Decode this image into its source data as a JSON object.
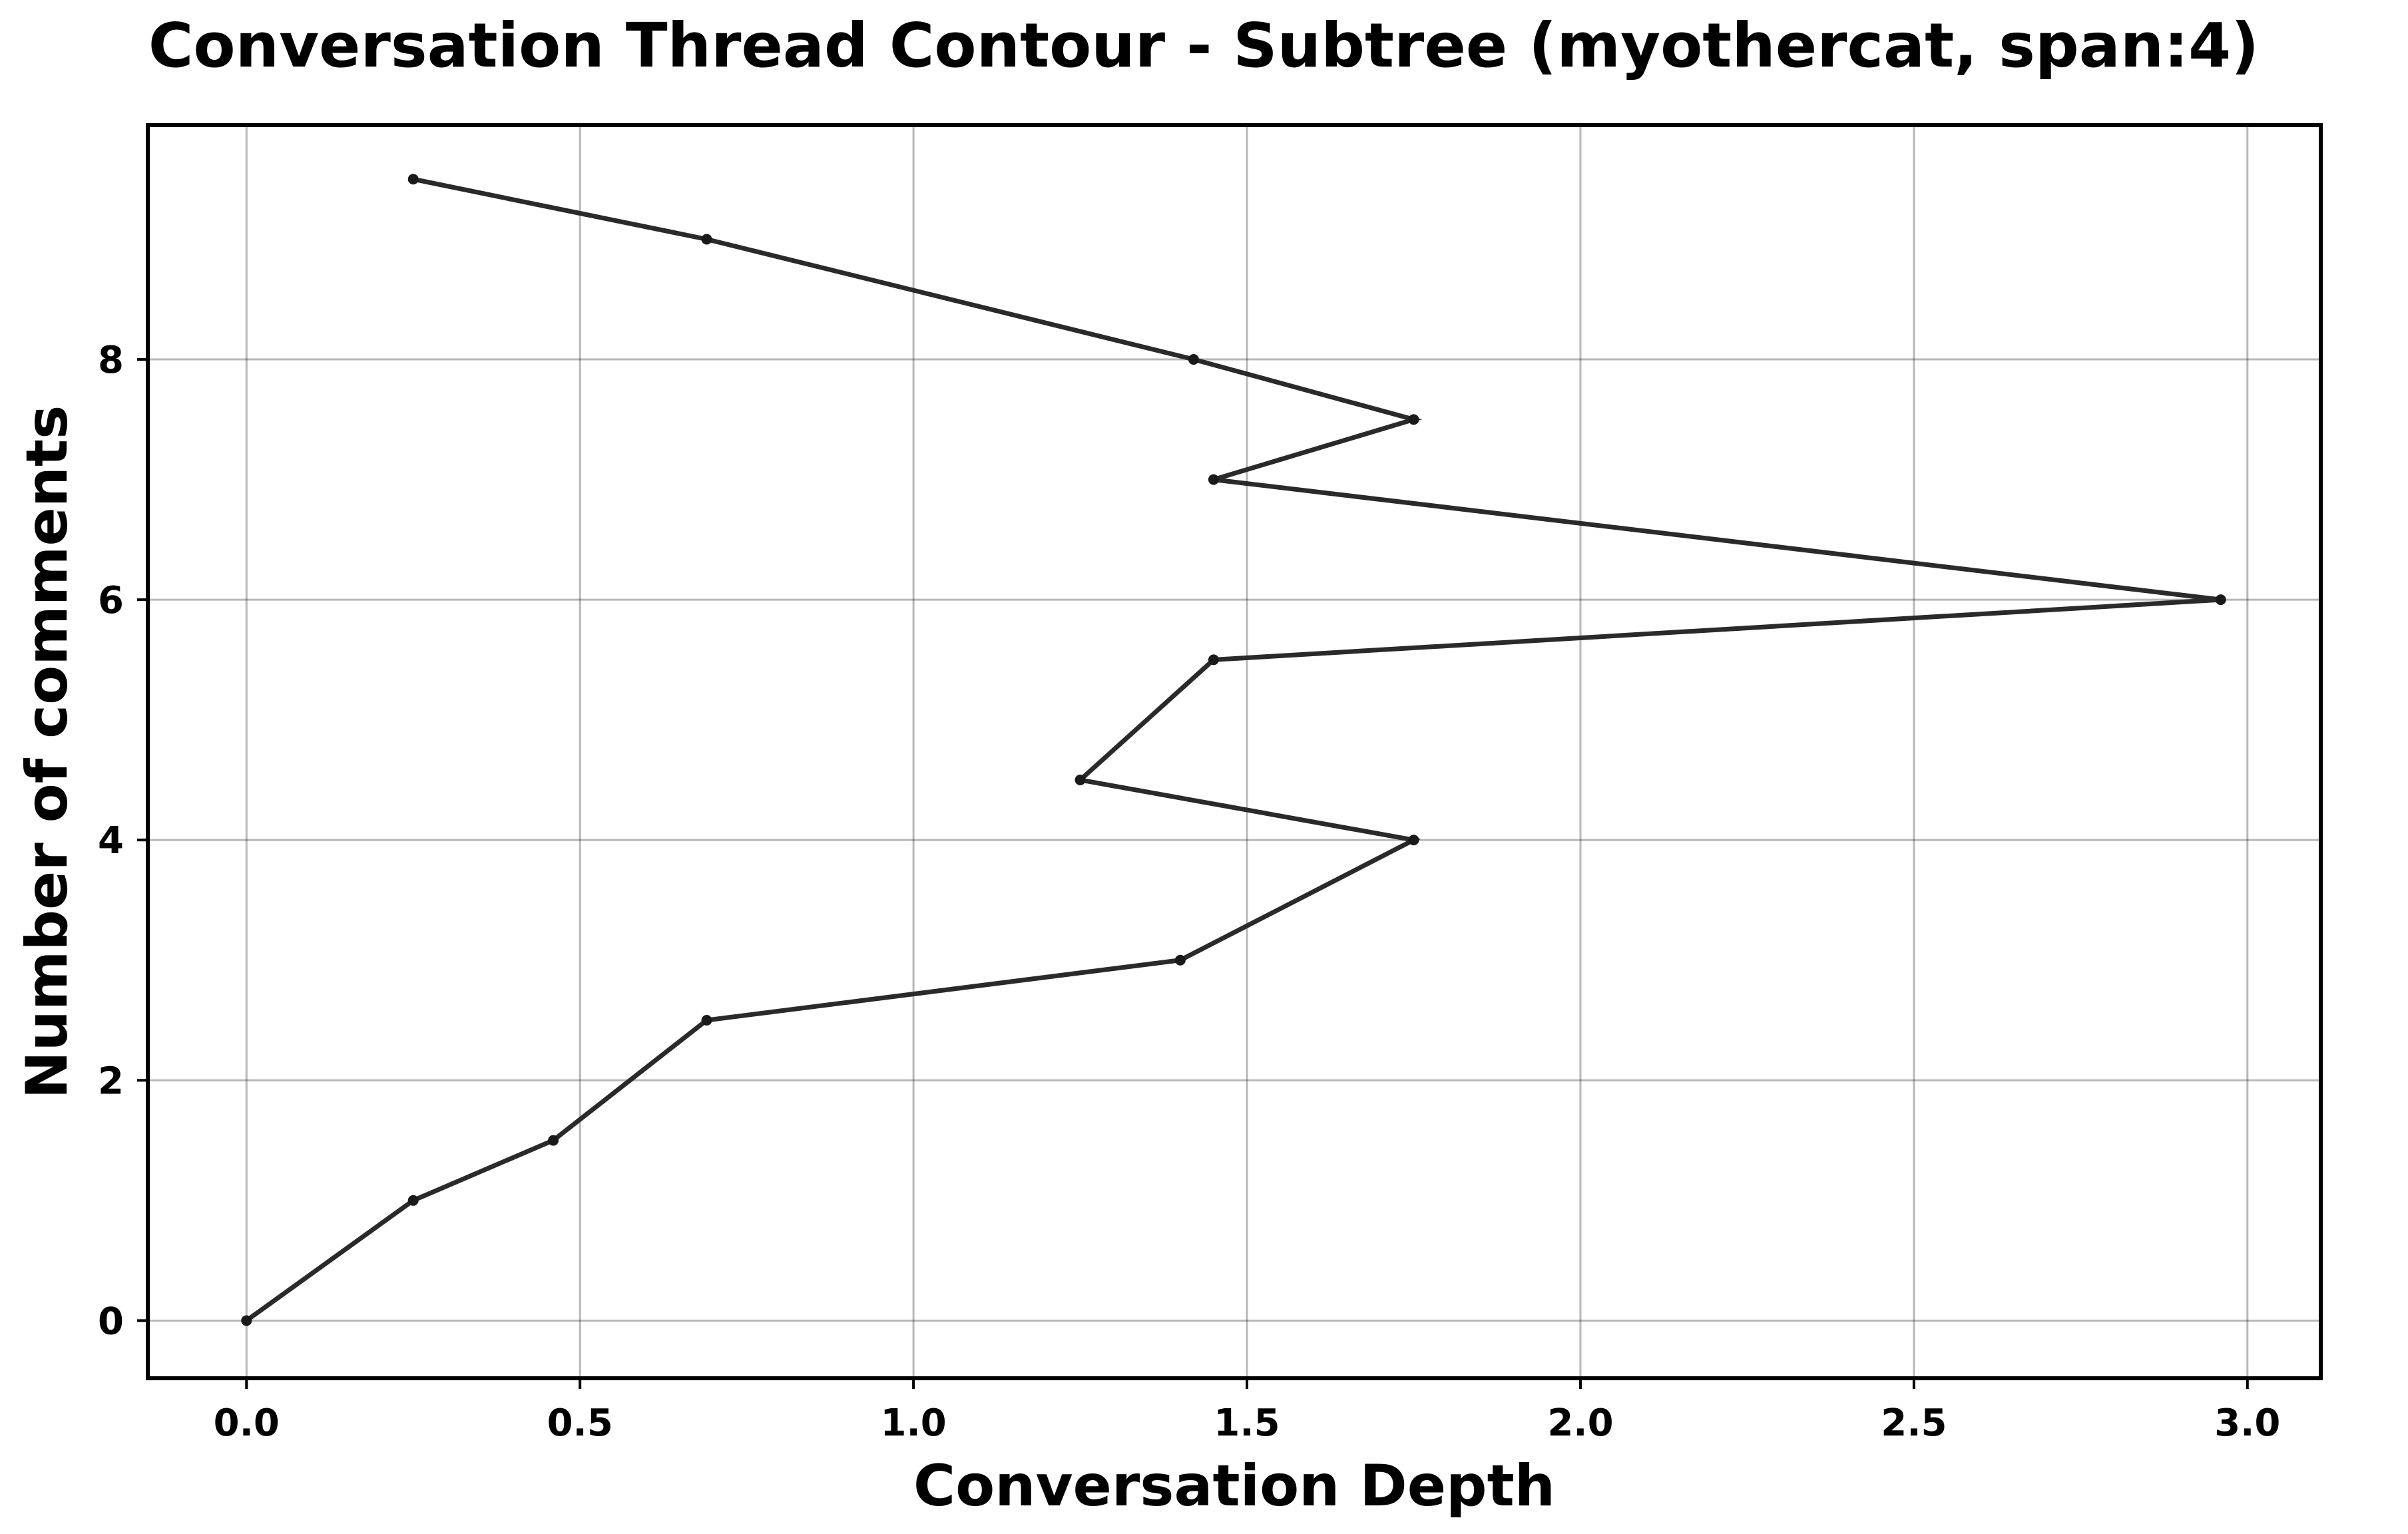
{
  "chart_data": {
    "type": "line",
    "title": "Conversation Thread Contour  - Subtree (myothercat, span:4)",
    "xlabel": "Conversation Depth",
    "ylabel": "Number of comments",
    "xlim": [
      -0.148,
      3.11
    ],
    "ylim": [
      -0.48,
      9.95
    ],
    "xticks": [
      0.0,
      0.5,
      1.0,
      1.5,
      2.0,
      2.5,
      3.0
    ],
    "xtick_labels": [
      "0.0",
      "0.5",
      "1.0",
      "1.5",
      "2.0",
      "2.5",
      "3.0"
    ],
    "yticks": [
      0,
      2,
      4,
      6,
      8
    ],
    "ytick_labels": [
      "0",
      "2",
      "4",
      "6",
      "8"
    ],
    "grid": true,
    "line_color": "#2a2a2a",
    "series": [
      {
        "x": [
          0.0,
          0.25,
          0.46,
          0.69,
          1.4,
          1.75,
          1.25,
          1.45,
          2.96,
          1.45,
          1.75,
          1.42,
          0.69,
          0.25
        ],
        "y": [
          0.0,
          1.0,
          1.5,
          2.5,
          3.0,
          4.0,
          4.5,
          5.5,
          6.0,
          7.0,
          7.5,
          8.0,
          9.0,
          9.5
        ]
      }
    ]
  }
}
